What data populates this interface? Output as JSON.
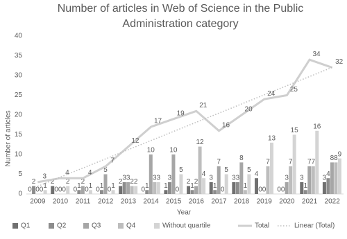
{
  "chart_data": {
    "type": "bar",
    "title": "Number of articles in Web of Science in the Public Administration category",
    "x_label": "Year",
    "y_label": "Number of articles",
    "categories": [
      "2009",
      "2010",
      "2011",
      "2012",
      "2013",
      "2014",
      "2015",
      "2016",
      "2017",
      "2018",
      "2019",
      "2020",
      "2021",
      "2022"
    ],
    "series": [
      {
        "name": "Q1",
        "color": "#707070",
        "values": [
          0,
          2,
          0,
          0,
          2,
          0,
          1,
          2,
          3,
          3,
          4,
          0,
          3,
          3
        ]
      },
      {
        "name": "Q2",
        "color": "#8c8c8c",
        "values": [
          2,
          0,
          1,
          1,
          3,
          1,
          3,
          1,
          1,
          3,
          0,
          0,
          1,
          4
        ]
      },
      {
        "name": "Q3",
        "color": "#a6a6a6",
        "values": [
          0,
          0,
          2,
          5,
          3,
          10,
          10,
          2,
          7,
          8,
          0,
          3,
          7,
          8
        ]
      },
      {
        "name": "Q4",
        "color": "#bdbdbd",
        "values": [
          0,
          0,
          0,
          0,
          2,
          3,
          0,
          12,
          0,
          1,
          7,
          7,
          7,
          8
        ]
      },
      {
        "name": "Without quartile",
        "color": "#d4d4d4",
        "values": [
          1,
          2,
          1,
          1,
          2,
          3,
          5,
          4,
          5,
          5,
          13,
          15,
          16,
          9
        ]
      },
      {
        "name": "Total",
        "type": "line",
        "color": "#cfcfcf",
        "values": [
          3,
          4,
          4,
          7,
          12,
          17,
          19,
          21,
          16,
          20,
          24,
          25,
          34,
          32
        ]
      }
    ],
    "trendline": {
      "name": "Linear (Total)",
      "type": "linear",
      "color": "#bdbdbd"
    },
    "ylim": [
      0,
      40
    ],
    "yticks": [
      0,
      5,
      10,
      15,
      20,
      25,
      30,
      35,
      40
    ],
    "grid": false
  }
}
